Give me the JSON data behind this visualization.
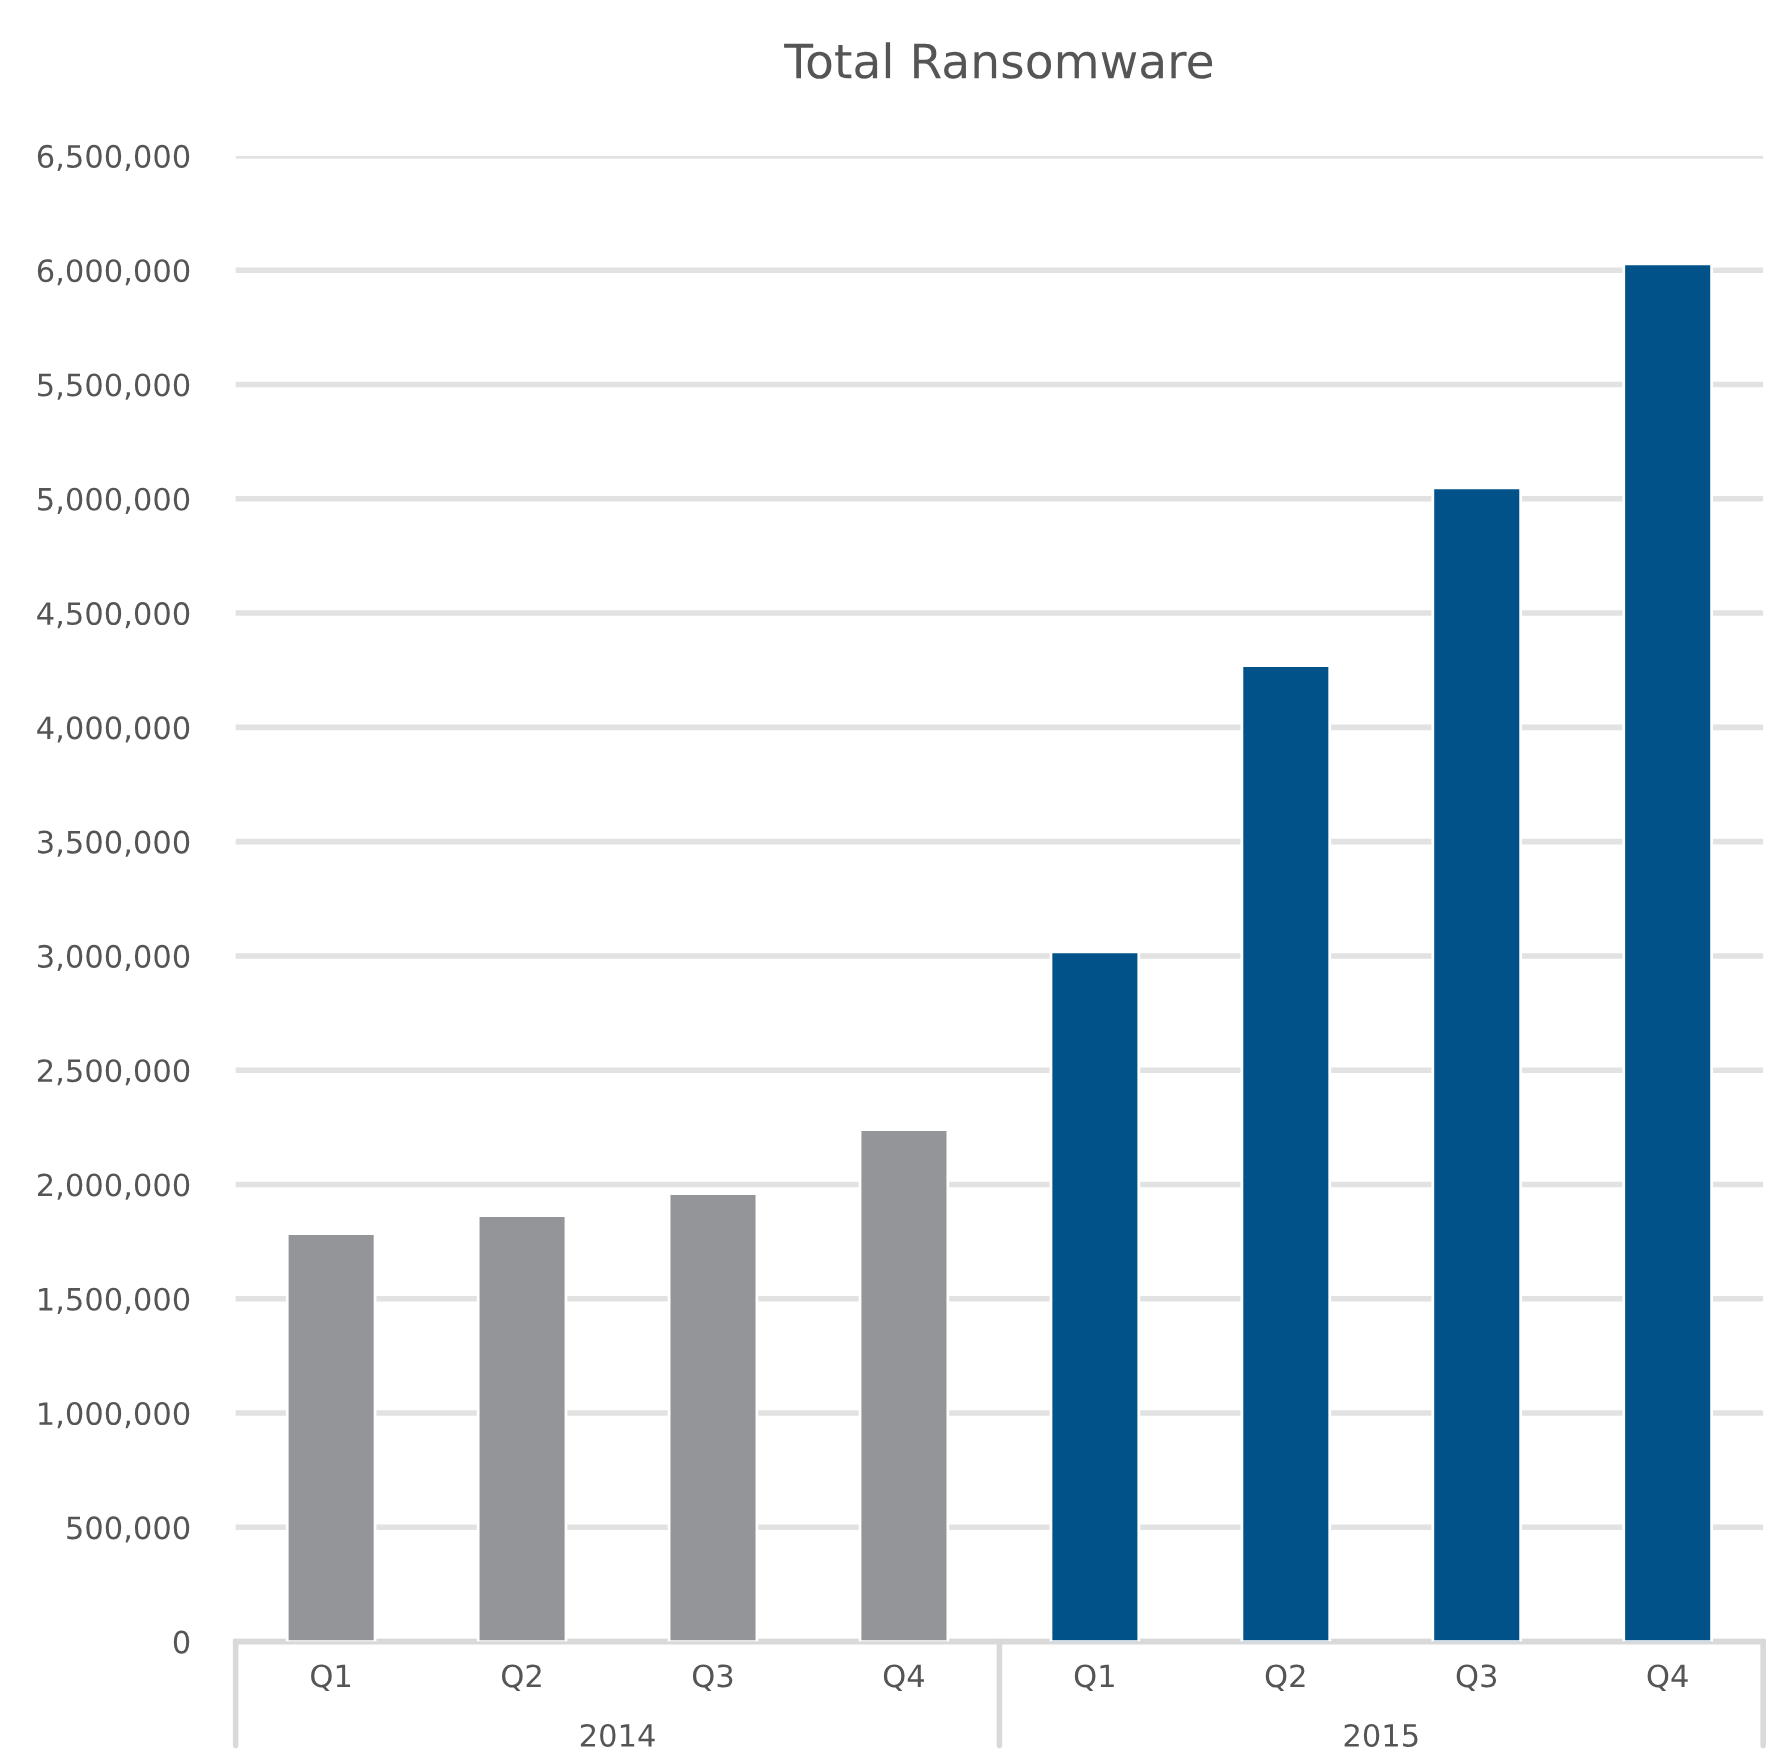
{
  "chart_data": {
    "type": "bar",
    "title": "Total Ransomware",
    "categories": [
      "Q1",
      "Q2",
      "Q3",
      "Q4",
      "Q1",
      "Q2",
      "Q3",
      "Q4"
    ],
    "values": [
      1785000,
      1864000,
      1960000,
      2240000,
      3018000,
      4270000,
      5048000,
      6028000
    ],
    "colors": [
      "#939598",
      "#939598",
      "#939598",
      "#939598",
      "#005288",
      "#005288",
      "#005288",
      "#005288"
    ],
    "ylim": [
      0,
      6500000
    ],
    "yticks": [
      {
        "value": 0,
        "label": "0"
      },
      {
        "value": 500000,
        "label": "500,000"
      },
      {
        "value": 1000000,
        "label": "1,000,000"
      },
      {
        "value": 1500000,
        "label": "1,500,000"
      },
      {
        "value": 2000000,
        "label": "2,000,000"
      },
      {
        "value": 2500000,
        "label": "2,500,000"
      },
      {
        "value": 3000000,
        "label": "3,000,000"
      },
      {
        "value": 3500000,
        "label": "3,500,000"
      },
      {
        "value": 4000000,
        "label": "4,000,000"
      },
      {
        "value": 4500000,
        "label": "4,500,000"
      },
      {
        "value": 5000000,
        "label": "5,000,000"
      },
      {
        "value": 5500000,
        "label": "5,500,000"
      },
      {
        "value": 6000000,
        "label": "6,000,000"
      },
      {
        "value": 6500000,
        "label": "6,500,000"
      }
    ],
    "grid": "y",
    "annotations": [
      "2014",
      "2015"
    ]
  }
}
